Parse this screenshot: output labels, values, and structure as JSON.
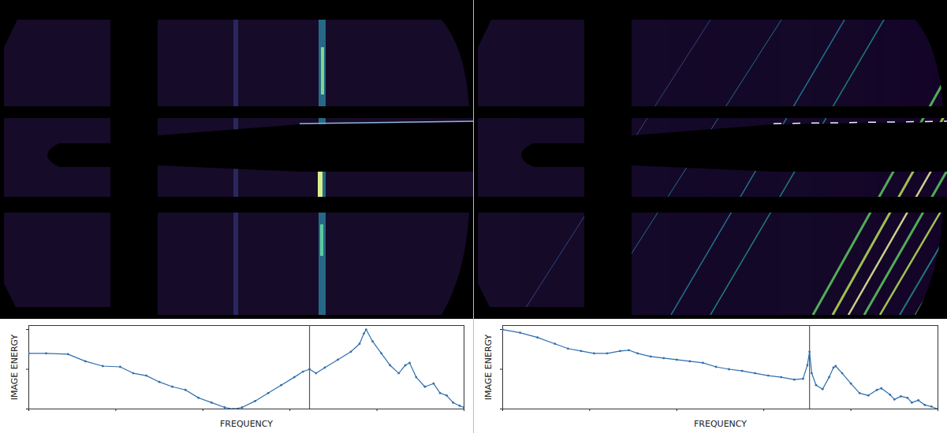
{
  "chart_data": [
    {
      "type": "line",
      "xlabel": "FREQUENCY",
      "ylabel": "IMAGE ENERGY",
      "xlim": [
        0,
        1
      ],
      "ylim": [
        0,
        1.05
      ],
      "xticks": [
        0,
        0.2,
        0.4,
        0.6,
        0.8,
        1
      ],
      "yticks": [
        0,
        0.5,
        1
      ],
      "tick_labels": false,
      "color": "#2f6ead",
      "marker": "o",
      "vertical_line_x": 0.645,
      "x": [
        0,
        0.04,
        0.09,
        0.13,
        0.17,
        0.21,
        0.24,
        0.27,
        0.3,
        0.33,
        0.36,
        0.39,
        0.42,
        0.45,
        0.47,
        0.49,
        0.52,
        0.55,
        0.58,
        0.61,
        0.63,
        0.645,
        0.66,
        0.68,
        0.71,
        0.74,
        0.76,
        0.77,
        0.775,
        0.79,
        0.81,
        0.83,
        0.85,
        0.865,
        0.875,
        0.89,
        0.91,
        0.93,
        0.945,
        0.96,
        0.975,
        0.99,
        1.0
      ],
      "values": [
        0.7,
        0.7,
        0.69,
        0.6,
        0.54,
        0.53,
        0.45,
        0.42,
        0.34,
        0.28,
        0.24,
        0.14,
        0.08,
        0.02,
        0.0,
        0.02,
        0.1,
        0.2,
        0.3,
        0.4,
        0.47,
        0.5,
        0.45,
        0.52,
        0.62,
        0.72,
        0.82,
        0.95,
        1.0,
        0.85,
        0.7,
        0.55,
        0.45,
        0.55,
        0.58,
        0.4,
        0.28,
        0.32,
        0.2,
        0.17,
        0.08,
        0.04,
        0.02
      ]
    },
    {
      "type": "line",
      "xlabel": "FREQUENCY",
      "ylabel": "IMAGE ENERGY",
      "xlim": [
        0,
        1
      ],
      "ylim": [
        0,
        1.05
      ],
      "xticks": [
        0,
        0.2,
        0.4,
        0.6,
        0.8,
        1
      ],
      "yticks": [
        0,
        0.5,
        1
      ],
      "tick_labels": false,
      "color": "#2f6ead",
      "marker": "o",
      "vertical_line_x": 0.705,
      "x": [
        0,
        0.04,
        0.08,
        0.12,
        0.15,
        0.18,
        0.21,
        0.24,
        0.27,
        0.29,
        0.31,
        0.34,
        0.37,
        0.4,
        0.43,
        0.46,
        0.49,
        0.52,
        0.55,
        0.58,
        0.61,
        0.64,
        0.67,
        0.69,
        0.7,
        0.705,
        0.71,
        0.72,
        0.735,
        0.75,
        0.76,
        0.765,
        0.78,
        0.8,
        0.82,
        0.84,
        0.86,
        0.87,
        0.89,
        0.9,
        0.915,
        0.93,
        0.94,
        0.955,
        0.97,
        0.985,
        1.0
      ],
      "values": [
        1.0,
        0.96,
        0.9,
        0.82,
        0.76,
        0.73,
        0.7,
        0.7,
        0.73,
        0.74,
        0.7,
        0.66,
        0.64,
        0.62,
        0.6,
        0.58,
        0.53,
        0.5,
        0.48,
        0.45,
        0.42,
        0.4,
        0.37,
        0.38,
        0.55,
        0.72,
        0.45,
        0.3,
        0.25,
        0.4,
        0.52,
        0.54,
        0.45,
        0.32,
        0.2,
        0.17,
        0.24,
        0.26,
        0.18,
        0.12,
        0.16,
        0.14,
        0.08,
        0.11,
        0.05,
        0.03,
        0.0
      ]
    }
  ]
}
